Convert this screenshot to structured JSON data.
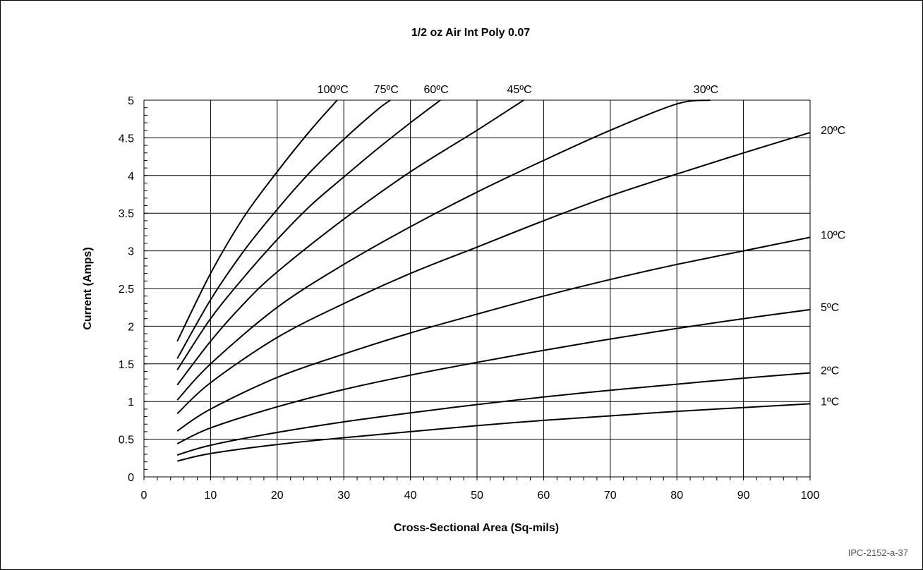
{
  "chart_data": {
    "type": "line",
    "title": "1/2 oz Air Int Poly 0.07",
    "xlabel": "Cross-Sectional Area (Sq-mils)",
    "ylabel": "Current (Amps)",
    "xlim": [
      0,
      100
    ],
    "ylim": [
      0,
      5
    ],
    "x_ticks": [
      0,
      10,
      20,
      30,
      40,
      50,
      60,
      70,
      80,
      90,
      100
    ],
    "y_ticks": [
      0,
      0.5,
      1,
      1.5,
      2,
      2.5,
      3,
      3.5,
      4,
      4.5,
      5
    ],
    "x_tick_labels": [
      "0",
      "10",
      "20",
      "30",
      "40",
      "50",
      "60",
      "70",
      "80",
      "90",
      "100"
    ],
    "y_tick_labels": [
      "0",
      "0.5",
      "1",
      "1.5",
      "2",
      "2.5",
      "3",
      "3.5",
      "4",
      "4.5",
      "5"
    ],
    "grid": true,
    "legend": "none",
    "series": [
      {
        "name": "100ºC",
        "label_position": "top",
        "x": [
          5,
          10,
          15,
          20,
          25,
          29
        ],
        "values": [
          1.8,
          2.7,
          3.45,
          4.05,
          4.6,
          5.0
        ]
      },
      {
        "name": "75ºC",
        "label_position": "top",
        "x": [
          5,
          10,
          15,
          20,
          25,
          30,
          35,
          37
        ],
        "values": [
          1.57,
          2.35,
          3.0,
          3.55,
          4.05,
          4.48,
          4.87,
          5.0
        ]
      },
      {
        "name": "60ºC",
        "label_position": "top",
        "x": [
          5,
          10,
          15,
          20,
          25,
          30,
          35,
          40,
          44.5
        ],
        "values": [
          1.42,
          2.1,
          2.65,
          3.15,
          3.6,
          3.98,
          4.35,
          4.7,
          5.0
        ]
      },
      {
        "name": "45ºC",
        "label_position": "top",
        "x": [
          5,
          10,
          15,
          20,
          30,
          40,
          50,
          57
        ],
        "values": [
          1.22,
          1.8,
          2.3,
          2.72,
          3.42,
          4.05,
          4.6,
          5.0
        ]
      },
      {
        "name": "30ºC",
        "label_position": "top",
        "x": [
          5,
          10,
          20,
          30,
          40,
          50,
          60,
          70,
          80,
          85
        ],
        "values": [
          1.02,
          1.5,
          2.25,
          2.82,
          3.32,
          3.78,
          4.2,
          4.6,
          4.95,
          5.0
        ]
      },
      {
        "name": "20ºC",
        "label_position": "right",
        "x": [
          5,
          10,
          20,
          30,
          40,
          50,
          60,
          70,
          80,
          90,
          100
        ],
        "values": [
          0.84,
          1.25,
          1.85,
          2.3,
          2.7,
          3.05,
          3.4,
          3.73,
          4.02,
          4.3,
          4.57
        ]
      },
      {
        "name": "10ºC",
        "label_position": "right",
        "x": [
          5,
          10,
          20,
          30,
          40,
          50,
          60,
          70,
          80,
          90,
          100
        ],
        "values": [
          0.61,
          0.9,
          1.32,
          1.63,
          1.91,
          2.16,
          2.4,
          2.62,
          2.82,
          3.0,
          3.18
        ]
      },
      {
        "name": "5ºC",
        "label_position": "right",
        "x": [
          5,
          10,
          20,
          30,
          40,
          50,
          60,
          70,
          80,
          90,
          100
        ],
        "values": [
          0.44,
          0.65,
          0.93,
          1.16,
          1.35,
          1.52,
          1.68,
          1.83,
          1.97,
          2.1,
          2.22
        ]
      },
      {
        "name": "2ºC",
        "label_position": "right",
        "x": [
          5,
          10,
          20,
          30,
          40,
          50,
          60,
          70,
          80,
          90,
          100
        ],
        "values": [
          0.29,
          0.42,
          0.59,
          0.73,
          0.85,
          0.96,
          1.06,
          1.15,
          1.23,
          1.31,
          1.38
        ]
      },
      {
        "name": "1ºC",
        "label_position": "right",
        "x": [
          5,
          10,
          20,
          30,
          40,
          50,
          60,
          70,
          80,
          90,
          100
        ],
        "values": [
          0.21,
          0.31,
          0.43,
          0.52,
          0.6,
          0.68,
          0.75,
          0.81,
          0.87,
          0.92,
          0.97
        ]
      }
    ],
    "figure_code": "IPC-2152-a-37"
  }
}
